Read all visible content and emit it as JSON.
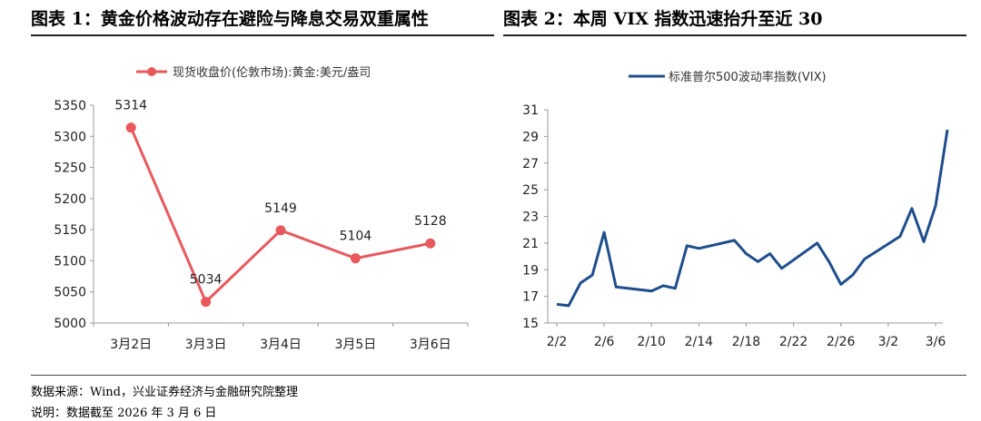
{
  "figure1": {
    "title": "图表 1：黄金价格波动存在避险与降息交易双重属性"
  },
  "figure2": {
    "title": "图表 2：本周 VIX 指数迅速抬升至近 30"
  },
  "notes": {
    "source": "数据来源：Wind，兴业证券经济与金融研究院整理",
    "remark": "说明：数据截至 2026 年 3 月 6 日"
  },
  "chart_data": [
    {
      "type": "line",
      "title": "",
      "categories": [
        "3月2日",
        "3月3日",
        "3月4日",
        "3月5日",
        "3月6日"
      ],
      "series": [
        {
          "name": "现货收盘价(伦敦市场):黄金:美元/盎司",
          "values": [
            5314,
            5034,
            5149,
            5104,
            5128
          ],
          "color": "#e8585c",
          "data_labels": [
            "5314",
            "5034",
            "5149",
            "5104",
            "5128"
          ]
        }
      ],
      "ylim": [
        5000,
        5350
      ],
      "yticks": [
        "5000",
        "5050",
        "5100",
        "5150",
        "5200",
        "5250",
        "5300",
        "5350"
      ],
      "grid": false,
      "legend_position": "top"
    },
    {
      "type": "line",
      "title": "",
      "x_start": "2026-02-02",
      "x_end": "2026-03-06",
      "xticks": [
        {
          "date": "2026-02-02",
          "label": "2/2"
        },
        {
          "date": "2026-02-06",
          "label": "2/6"
        },
        {
          "date": "2026-02-10",
          "label": "2/10"
        },
        {
          "date": "2026-02-14",
          "label": "2/14"
        },
        {
          "date": "2026-02-18",
          "label": "2/18"
        },
        {
          "date": "2026-02-22",
          "label": "2/22"
        },
        {
          "date": "2026-02-26",
          "label": "2/26"
        },
        {
          "date": "2026-03-02",
          "label": "3/2"
        },
        {
          "date": "2026-03-06",
          "label": "3/6"
        }
      ],
      "series": [
        {
          "name": "标准普尔500波动率指数(VIX)",
          "color": "#1f4e8c",
          "points": [
            {
              "x": "2026-02-02",
              "y": 16.4
            },
            {
              "x": "2026-02-03",
              "y": 16.3
            },
            {
              "x": "2026-02-04",
              "y": 18.0
            },
            {
              "x": "2026-02-05",
              "y": 18.6
            },
            {
              "x": "2026-02-06",
              "y": 21.8
            },
            {
              "x": "2026-02-07",
              "y": 17.7
            },
            {
              "x": "2026-02-10",
              "y": 17.4
            },
            {
              "x": "2026-02-11",
              "y": 17.8
            },
            {
              "x": "2026-02-12",
              "y": 17.6
            },
            {
              "x": "2026-02-13",
              "y": 20.8
            },
            {
              "x": "2026-02-14",
              "y": 20.6
            },
            {
              "x": "2026-02-17",
              "y": 21.2
            },
            {
              "x": "2026-02-18",
              "y": 20.2
            },
            {
              "x": "2026-02-19",
              "y": 19.6
            },
            {
              "x": "2026-02-20",
              "y": 20.2
            },
            {
              "x": "2026-02-21",
              "y": 19.1
            },
            {
              "x": "2026-02-24",
              "y": 21.0
            },
            {
              "x": "2026-02-25",
              "y": 19.6
            },
            {
              "x": "2026-02-26",
              "y": 17.9
            },
            {
              "x": "2026-02-27",
              "y": 18.6
            },
            {
              "x": "2026-02-28",
              "y": 19.8
            },
            {
              "x": "2026-03-03",
              "y": 21.5
            },
            {
              "x": "2026-03-04",
              "y": 23.6
            },
            {
              "x": "2026-03-05",
              "y": 21.1
            },
            {
              "x": "2026-03-06",
              "y": 23.8
            },
            {
              "x": "2026-03-07",
              "y": 29.5
            }
          ]
        }
      ],
      "ylim": [
        15,
        31
      ],
      "yticks": [
        "15",
        "17",
        "19",
        "21",
        "23",
        "25",
        "27",
        "29",
        "31"
      ],
      "grid": false,
      "legend_position": "top"
    }
  ]
}
